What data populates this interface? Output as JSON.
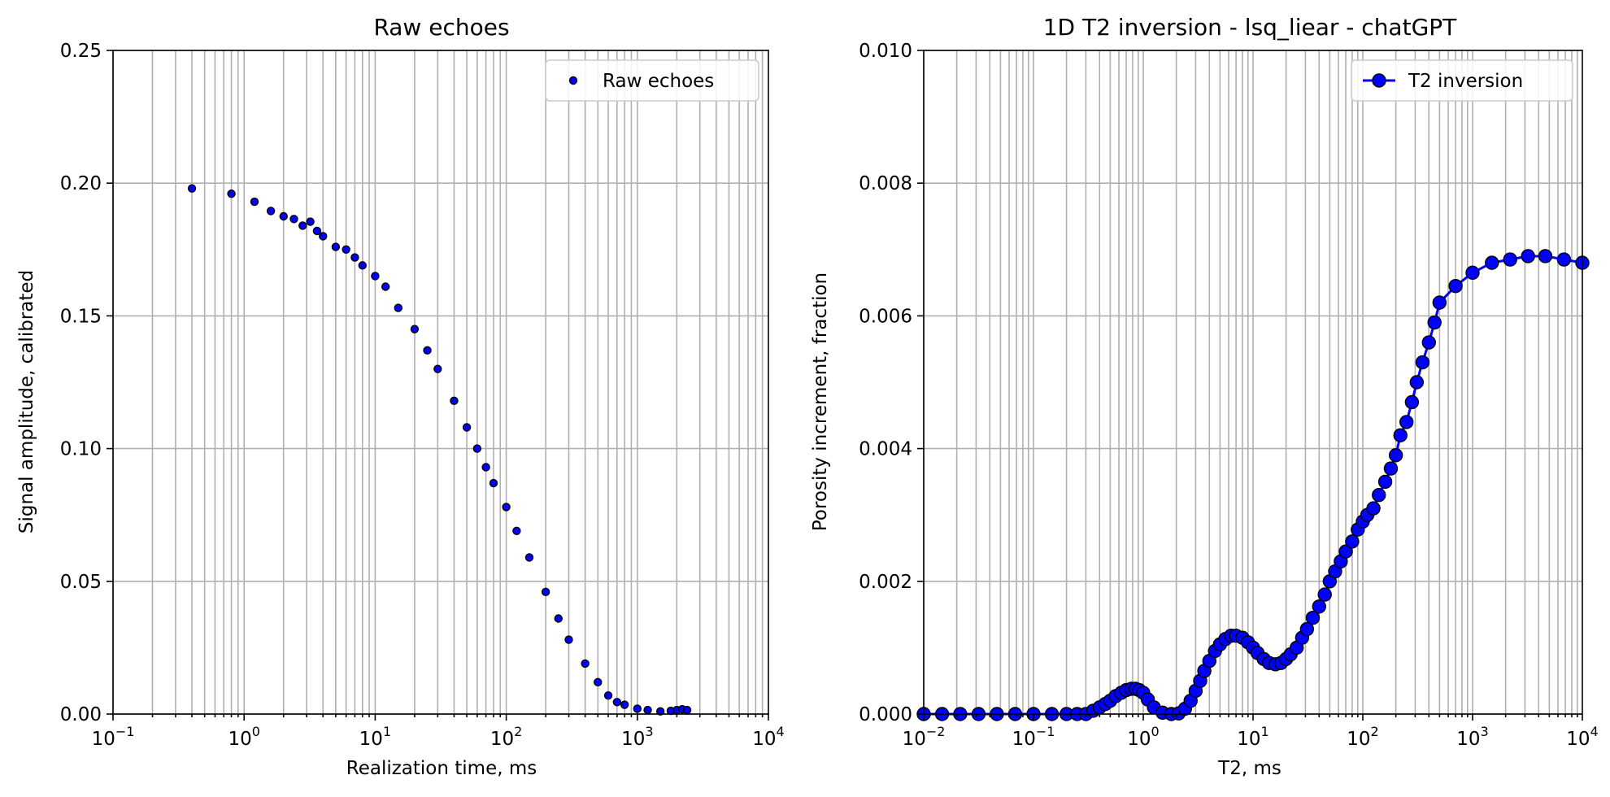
{
  "chart_data": [
    {
      "type": "scatter",
      "title": "Raw echoes",
      "xlabel": "Realization time, ms",
      "ylabel": "Signal amplitude, calibrated",
      "xscale": "log",
      "xlim": [
        0.1,
        10000
      ],
      "ylim": [
        0,
        0.25
      ],
      "xticks": [
        {
          "base": "10",
          "exp": "−1"
        },
        {
          "base": "10",
          "exp": "0"
        },
        {
          "base": "10",
          "exp": "1"
        },
        {
          "base": "10",
          "exp": "2"
        },
        {
          "base": "10",
          "exp": "3"
        },
        {
          "base": "10",
          "exp": "4"
        }
      ],
      "yticks": [
        "0.00",
        "0.05",
        "0.10",
        "0.15",
        "0.20",
        "0.25"
      ],
      "grid": true,
      "legend": {
        "placement": "top-right",
        "entries": [
          "Raw echoes"
        ]
      },
      "marker_color": "#0000ff",
      "marker_edge": "#000000",
      "series": [
        {
          "name": "Raw echoes",
          "x": [
            0.4,
            0.8,
            1.2,
            1.6,
            2.0,
            2.4,
            2.8,
            3.2,
            3.6,
            4.0,
            5,
            6,
            7,
            8,
            10,
            12,
            15,
            20,
            25,
            30,
            40,
            50,
            60,
            70,
            80,
            100,
            120,
            150,
            200,
            250,
            300,
            400,
            500,
            600,
            700,
            800,
            1000,
            1200,
            1500,
            1800,
            2000,
            2200,
            2400
          ],
          "y": [
            0.198,
            0.196,
            0.193,
            0.1895,
            0.1875,
            0.1865,
            0.184,
            0.1855,
            0.182,
            0.18,
            0.176,
            0.175,
            0.172,
            0.169,
            0.165,
            0.161,
            0.153,
            0.145,
            0.137,
            0.13,
            0.118,
            0.108,
            0.1,
            0.093,
            0.087,
            0.078,
            0.069,
            0.059,
            0.046,
            0.036,
            0.028,
            0.019,
            0.012,
            0.007,
            0.0045,
            0.0035,
            0.002,
            0.0015,
            0.001,
            0.0012,
            0.0015,
            0.0018,
            0.0015
          ]
        }
      ]
    },
    {
      "type": "line",
      "title": "1D T2 inversion - lsq_liear - chatGPT",
      "xlabel": "T2, ms",
      "ylabel": "Porosity increment, fraction",
      "xscale": "log",
      "xlim": [
        0.01,
        10000
      ],
      "ylim": [
        0,
        0.01
      ],
      "xticks": [
        {
          "base": "10",
          "exp": "−2"
        },
        {
          "base": "10",
          "exp": "−1"
        },
        {
          "base": "10",
          "exp": "0"
        },
        {
          "base": "10",
          "exp": "1"
        },
        {
          "base": "10",
          "exp": "2"
        },
        {
          "base": "10",
          "exp": "3"
        },
        {
          "base": "10",
          "exp": "4"
        }
      ],
      "yticks": [
        "0.000",
        "0.002",
        "0.004",
        "0.006",
        "0.008",
        "0.010"
      ],
      "grid": true,
      "legend": {
        "placement": "top-right",
        "entries": [
          "T2 inversion"
        ]
      },
      "line_color": "#0000ff",
      "marker_color": "#0000ff",
      "marker_edge": "#000000",
      "series": [
        {
          "name": "T2 inversion",
          "x": [
            0.01,
            0.0147,
            0.0215,
            0.0316,
            0.0464,
            0.0681,
            0.1,
            0.147,
            0.2,
            0.25,
            0.3,
            0.35,
            0.4,
            0.45,
            0.5,
            0.56,
            0.63,
            0.7,
            0.78,
            0.85,
            0.92,
            1.0,
            1.1,
            1.25,
            1.5,
            1.8,
            2.1,
            2.4,
            2.7,
            3.0,
            3.3,
            3.6,
            4.0,
            4.5,
            5.0,
            5.6,
            6.3,
            7.0,
            8.0,
            9.0,
            10.0,
            11.0,
            12.5,
            14.0,
            16.0,
            18.0,
            20.0,
            22.0,
            25.0,
            28.0,
            31.0,
            35.0,
            40.0,
            45.0,
            50.0,
            56.0,
            63.0,
            70.0,
            80.0,
            90.0,
            100.0,
            110.0,
            125.0,
            140.0,
            160.0,
            180.0,
            200.0,
            220.0,
            250.0,
            280.0,
            310.0,
            350.0,
            400.0,
            450.0,
            500.0,
            700.0,
            1000.0,
            1500.0,
            2200.0,
            3200.0,
            4600.0,
            6800.0,
            10000.0
          ],
          "y": [
            0.0,
            0.0,
            0.0,
            0.0,
            0.0,
            0.0,
            0.0,
            0.0,
            0.0,
            0.0,
            0.0,
            5e-05,
            0.0001,
            0.00015,
            0.0002,
            0.00027,
            0.00032,
            0.00036,
            0.00038,
            0.00038,
            0.00036,
            0.00032,
            0.00022,
            0.0001,
            2e-05,
            0.0,
            1e-05,
            8e-05,
            0.0002,
            0.00035,
            0.0005,
            0.00065,
            0.0008,
            0.00095,
            0.00105,
            0.00113,
            0.00118,
            0.00118,
            0.00115,
            0.00108,
            0.001,
            0.00092,
            0.00083,
            0.00077,
            0.00075,
            0.00077,
            0.00083,
            0.0009,
            0.001,
            0.00115,
            0.00128,
            0.00145,
            0.00162,
            0.0018,
            0.002,
            0.00215,
            0.0023,
            0.00245,
            0.0026,
            0.00278,
            0.0029,
            0.003,
            0.0031,
            0.0033,
            0.0035,
            0.0037,
            0.0039,
            0.0042,
            0.0044,
            0.0047,
            0.005,
            0.0053,
            0.0056,
            0.0059,
            0.0062,
            0.00645,
            0.00665,
            0.0068,
            0.00685,
            0.0069,
            0.0069,
            0.00685,
            0.0068
          ]
        }
      ]
    }
  ]
}
